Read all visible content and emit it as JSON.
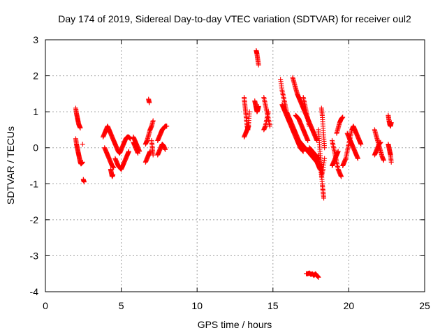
{
  "chart_data": {
    "type": "scatter",
    "title": "Day 174 of 2019, Sidereal Day-to-day VTEC variation (SDTVAR) for receiver oul2",
    "xlabel": "GPS time / hours",
    "ylabel": "SDTVAR / TECUs",
    "xlim": [
      0,
      25
    ],
    "ylim": [
      -4,
      3
    ],
    "xticks": [
      0,
      5,
      10,
      15,
      20,
      25
    ],
    "yticks": [
      -4,
      -3,
      -2,
      -1,
      0,
      1,
      2,
      3
    ],
    "xtick_labels": [
      "0",
      "5",
      "10",
      "15",
      "20",
      "25"
    ],
    "ytick_labels": [
      "-4",
      "-3",
      "-2",
      "-1",
      "0",
      "1",
      "2",
      "3"
    ],
    "grid": true,
    "marker": "+",
    "color": "#ff0000",
    "series_segments": [
      {
        "x": [
          2.0,
          2.05,
          2.1,
          2.15,
          2.2,
          2.25,
          2.3
        ],
        "y": [
          1.1,
          0.95,
          0.85,
          0.75,
          0.65,
          0.6,
          0.55
        ]
      },
      {
        "x": [
          2.0,
          2.05,
          2.1,
          2.15,
          2.2,
          2.25,
          2.3,
          2.35,
          2.45
        ],
        "y": [
          0.25,
          0.1,
          0.0,
          -0.1,
          -0.2,
          -0.3,
          -0.4,
          -0.45,
          -0.4
        ]
      },
      {
        "x": [
          2.5,
          2.55
        ],
        "y": [
          -0.88,
          -0.95
        ]
      },
      {
        "x": [
          2.45
        ],
        "y": [
          0.1
        ]
      },
      {
        "x": [
          3.8,
          3.9,
          4.0,
          4.1,
          4.2,
          4.3,
          4.4,
          4.5,
          4.6
        ],
        "y": [
          0.3,
          0.4,
          0.5,
          0.6,
          0.5,
          0.4,
          0.3,
          0.2,
          0.1
        ]
      },
      {
        "x": [
          3.9,
          4.0,
          4.1,
          4.2,
          4.3,
          4.4,
          4.5
        ],
        "y": [
          0.0,
          -0.1,
          -0.2,
          -0.3,
          -0.4,
          -0.5,
          -0.55
        ]
      },
      {
        "x": [
          4.3,
          4.35,
          4.4,
          4.45
        ],
        "y": [
          -0.6,
          -0.7,
          -0.8,
          -0.75
        ]
      },
      {
        "x": [
          4.6,
          4.7,
          4.8,
          4.9,
          5.0,
          5.1,
          5.2,
          5.3,
          5.4,
          5.5,
          5.6
        ],
        "y": [
          0.1,
          0.0,
          -0.1,
          -0.15,
          -0.05,
          0.05,
          0.15,
          0.25,
          0.3,
          0.3,
          0.25
        ]
      },
      {
        "x": [
          4.6,
          4.7,
          4.8,
          4.9,
          5.0,
          5.1,
          5.2,
          5.3,
          5.4,
          5.5
        ],
        "y": [
          -0.3,
          -0.4,
          -0.5,
          -0.55,
          -0.6,
          -0.5,
          -0.4,
          -0.3,
          -0.2,
          -0.1
        ]
      },
      {
        "x": [
          5.8,
          5.9,
          6.0,
          6.1,
          6.2
        ],
        "y": [
          0.3,
          0.2,
          0.1,
          0.0,
          -0.1
        ]
      },
      {
        "x": [
          5.8,
          5.9,
          6.0,
          6.1
        ],
        "y": [
          0.15,
          0.05,
          -0.05,
          -0.15
        ]
      },
      {
        "x": [
          6.8,
          6.85
        ],
        "y": [
          1.35,
          1.25
        ]
      },
      {
        "x": [
          6.6,
          6.7,
          6.8,
          6.9,
          7.0,
          7.1
        ],
        "y": [
          0.1,
          0.2,
          0.35,
          0.5,
          0.6,
          0.75
        ]
      },
      {
        "x": [
          6.6,
          6.7,
          6.8,
          6.9
        ],
        "y": [
          -0.4,
          -0.3,
          -0.2,
          -0.1
        ]
      },
      {
        "x": [
          7.0,
          7.05,
          7.1
        ],
        "y": [
          0.2,
          0.0,
          -0.2
        ]
      },
      {
        "x": [
          7.4,
          7.5,
          7.6,
          7.7,
          7.8,
          7.9,
          8.0
        ],
        "y": [
          0.2,
          0.3,
          0.4,
          0.5,
          0.55,
          0.6,
          0.6
        ]
      },
      {
        "x": [
          7.4,
          7.5,
          7.6,
          7.7,
          7.8,
          7.9
        ],
        "y": [
          -0.2,
          -0.1,
          0.0,
          0.1,
          0.05,
          -0.05
        ]
      },
      {
        "x": [
          13.1,
          13.15,
          13.2,
          13.25,
          13.3,
          13.35,
          13.4,
          13.45
        ],
        "y": [
          1.4,
          1.2,
          1.0,
          0.8,
          0.6,
          0.5,
          0.7,
          1.0
        ]
      },
      {
        "x": [
          13.1,
          13.2,
          13.3,
          13.4
        ],
        "y": [
          0.3,
          0.4,
          0.5,
          0.6
        ]
      },
      {
        "x": [
          13.9,
          13.95,
          14.0,
          14.05
        ],
        "y": [
          2.7,
          2.6,
          2.45,
          2.3
        ]
      },
      {
        "x": [
          13.8,
          13.85,
          13.9,
          13.95,
          14.0,
          14.05
        ],
        "y": [
          1.3,
          1.2,
          1.1,
          1.0,
          1.05,
          1.15
        ]
      },
      {
        "x": [
          14.4,
          14.5,
          14.6,
          14.7,
          14.8
        ],
        "y": [
          1.4,
          1.2,
          1.0,
          0.8,
          0.6
        ]
      },
      {
        "x": [
          14.4,
          14.5,
          14.6,
          14.7
        ],
        "y": [
          0.5,
          0.6,
          0.8,
          1.0
        ]
      },
      {
        "x": [
          15.5,
          15.6,
          15.7,
          15.8,
          15.9,
          16.0,
          16.1,
          16.2,
          16.3,
          16.4,
          16.5,
          16.6,
          16.7,
          16.8,
          16.9,
          17.0,
          17.1,
          17.2,
          17.3,
          17.4,
          17.5,
          17.6,
          17.7,
          17.8,
          17.9,
          18.0,
          18.1
        ],
        "y": [
          1.9,
          1.6,
          1.4,
          1.2,
          1.0,
          0.9,
          0.8,
          0.7,
          0.6,
          0.5,
          0.4,
          0.3,
          0.2,
          0.15,
          0.1,
          0.05,
          0.0,
          -0.05,
          -0.1,
          -0.15,
          -0.2,
          -0.25,
          -0.3,
          -0.35,
          -0.4,
          -0.5,
          -0.6
        ]
      },
      {
        "x": [
          15.6,
          15.7,
          15.8,
          15.9,
          16.0,
          16.1,
          16.2,
          16.3,
          16.4,
          16.5,
          16.6,
          16.7,
          16.8,
          16.9,
          17.0
        ],
        "y": [
          1.2,
          1.1,
          1.0,
          0.9,
          0.8,
          0.7,
          0.6,
          0.5,
          0.4,
          0.3,
          0.2,
          0.1,
          0.0,
          -0.05,
          -0.1
        ]
      },
      {
        "x": [
          16.3,
          16.4,
          16.5,
          16.6,
          16.7,
          16.8,
          16.9,
          17.0,
          17.1,
          17.2,
          17.3,
          17.4,
          17.5,
          17.6,
          17.7,
          17.8,
          17.9
        ],
        "y": [
          1.95,
          1.8,
          1.65,
          1.5,
          1.4,
          1.3,
          1.2,
          1.1,
          1.0,
          0.9,
          0.8,
          0.7,
          0.6,
          0.5,
          0.4,
          0.3,
          0.2
        ]
      },
      {
        "x": [
          16.5,
          16.6,
          16.7,
          16.8,
          16.9,
          17.0,
          17.1,
          17.2,
          17.3
        ],
        "y": [
          0.9,
          0.85,
          0.8,
          0.7,
          0.6,
          0.5,
          0.4,
          0.3,
          0.2
        ]
      },
      {
        "x": [
          17.0,
          17.1,
          17.2,
          17.3,
          17.4
        ],
        "y": [
          1.4,
          1.2,
          1.0,
          0.8,
          0.6
        ]
      },
      {
        "x": [
          17.4,
          17.5,
          17.6,
          17.7,
          17.8,
          17.9,
          18.0
        ],
        "y": [
          0.0,
          -0.05,
          -0.1,
          -0.15,
          -0.2,
          -0.25,
          -0.3
        ]
      },
      {
        "x": [
          17.2,
          17.3,
          17.4,
          17.5,
          17.6,
          17.7,
          17.8,
          17.9,
          18.0
        ],
        "y": [
          -3.5,
          -3.5,
          -3.48,
          -3.52,
          -3.5,
          -3.55,
          -3.5,
          -3.55,
          -3.6
        ]
      },
      {
        "x": [
          18.0,
          18.05,
          18.1,
          18.15,
          18.2,
          18.25,
          18.3,
          18.35
        ],
        "y": [
          0.5,
          0.2,
          -0.1,
          -0.4,
          -0.7,
          -1.0,
          -1.2,
          -1.4
        ]
      },
      {
        "x": [
          18.0,
          18.1,
          18.2,
          18.3,
          18.4
        ],
        "y": [
          -0.2,
          -0.5,
          -0.8,
          -0.6,
          -0.3
        ]
      },
      {
        "x": [
          18.2,
          18.25,
          18.3,
          18.35,
          18.4
        ],
        "y": [
          1.1,
          0.9,
          0.6,
          0.3,
          0.0
        ]
      },
      {
        "x": [
          18.9,
          19.0,
          19.1,
          19.2,
          19.3,
          19.4,
          19.5
        ],
        "y": [
          0.2,
          0.0,
          -0.2,
          -0.4,
          -0.6,
          -0.7,
          -0.8
        ]
      },
      {
        "x": [
          18.9,
          19.0,
          19.1,
          19.2,
          19.3
        ],
        "y": [
          -0.5,
          -0.4,
          -0.3,
          -0.2,
          -0.1
        ]
      },
      {
        "x": [
          19.2,
          19.3,
          19.4,
          19.5,
          19.6
        ],
        "y": [
          0.4,
          0.55,
          0.7,
          0.8,
          0.85
        ]
      },
      {
        "x": [
          19.6,
          19.7,
          19.8,
          19.9,
          20.0,
          20.1,
          20.2,
          20.3,
          20.4,
          20.5,
          20.6,
          20.7,
          20.8
        ],
        "y": [
          -0.5,
          -0.4,
          -0.3,
          -0.1,
          0.1,
          0.3,
          0.5,
          0.6,
          0.5,
          0.4,
          0.3,
          0.2,
          0.1
        ]
      },
      {
        "x": [
          19.9,
          20.0,
          20.1,
          20.2,
          20.3,
          20.4,
          20.5,
          20.6
        ],
        "y": [
          0.4,
          0.3,
          0.2,
          0.1,
          0.0,
          -0.1,
          -0.2,
          -0.3
        ]
      },
      {
        "x": [
          21.7,
          21.8,
          21.9,
          22.0,
          22.1,
          22.2,
          22.3
        ],
        "y": [
          0.5,
          0.35,
          0.2,
          0.05,
          -0.1,
          -0.25,
          -0.35
        ]
      },
      {
        "x": [
          21.7,
          21.8,
          21.9,
          22.0,
          22.1
        ],
        "y": [
          -0.2,
          -0.1,
          0.0,
          0.1,
          0.15
        ]
      },
      {
        "x": [
          22.6,
          22.65,
          22.7,
          22.75,
          22.8
        ],
        "y": [
          0.1,
          0.0,
          -0.1,
          -0.2,
          -0.4
        ]
      },
      {
        "x": [
          22.6,
          22.65,
          22.7,
          22.75,
          22.8
        ],
        "y": [
          0.9,
          0.75,
          0.65,
          0.6,
          0.7
        ]
      }
    ]
  }
}
